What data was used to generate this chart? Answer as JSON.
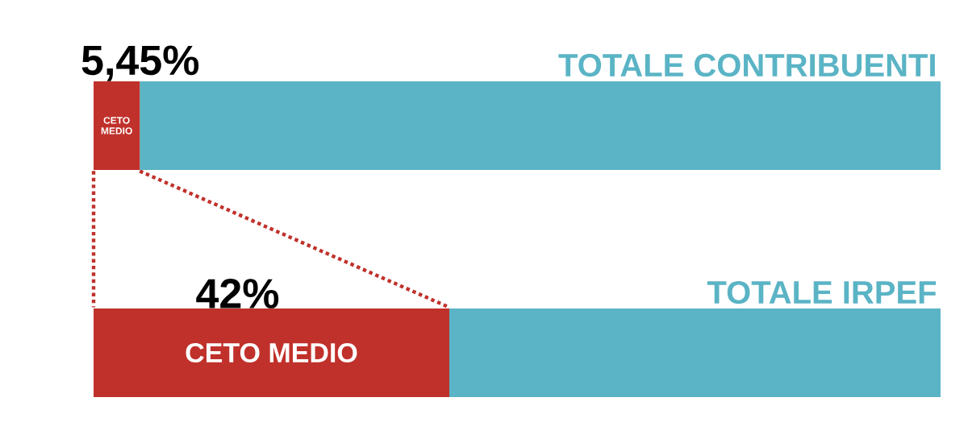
{
  "chart_data": {
    "type": "bar",
    "orientation": "horizontal",
    "stacked": true,
    "categories": [
      "TOTALE CONTRIBUENTI",
      "TOTALE IRPEF"
    ],
    "series": [
      {
        "name": "CETO MEDIO",
        "color": "#c0312b",
        "values": [
          5.45,
          42
        ],
        "value_labels": [
          "5,45%",
          "42%"
        ]
      },
      {
        "color": "#5ab4c5",
        "values": [
          94.55,
          58
        ]
      }
    ],
    "xlim": [
      0,
      100
    ]
  }
}
